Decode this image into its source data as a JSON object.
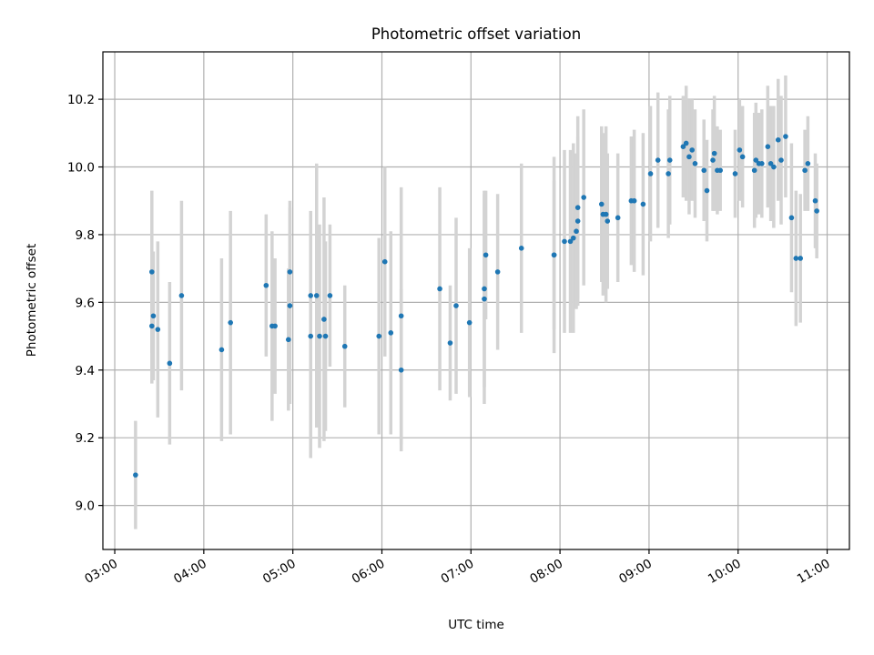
{
  "chart_data": {
    "type": "scatter",
    "title": "Photometric offset variation",
    "xlabel": "UTC time",
    "ylabel": "Photometric offset",
    "xlim": [
      "02:52",
      "11:15"
    ],
    "ylim": [
      8.87,
      10.34
    ],
    "grid": true,
    "legend": "none",
    "point_color": "#1f77b4",
    "errorbar_color": "#d3d3d3",
    "xticks": [
      "03:00",
      "04:00",
      "05:00",
      "06:00",
      "07:00",
      "08:00",
      "09:00",
      "10:00",
      "11:00"
    ],
    "yticks": [
      "9.0",
      "9.2",
      "9.4",
      "9.6",
      "9.8",
      "10.0",
      "10.2"
    ],
    "series": [
      {
        "x": [
          "03:14",
          "03:25",
          "03:25",
          "03:26",
          "03:29",
          "03:37",
          "03:45",
          "04:12",
          "04:18",
          "04:42",
          "04:46",
          "04:48",
          "04:57",
          "04:58",
          "04:58",
          "05:12",
          "05:12",
          "05:16",
          "05:18",
          "05:21",
          "05:22",
          "05:25",
          "05:35",
          "05:58",
          "06:02",
          "06:06",
          "06:13",
          "06:13",
          "06:39",
          "06:46",
          "06:50",
          "06:59",
          "07:09",
          "07:09",
          "07:10",
          "07:18",
          "07:34",
          "07:56",
          "07:56",
          "08:03",
          "08:07",
          "08:09",
          "08:11",
          "08:12",
          "08:12",
          "08:16",
          "08:28",
          "08:29",
          "08:31",
          "08:32",
          "08:39",
          "08:48",
          "08:50",
          "08:56",
          "09:01",
          "09:06",
          "09:13",
          "09:14",
          "09:23",
          "09:25",
          "09:27",
          "09:29",
          "09:31",
          "09:37",
          "09:39",
          "09:43",
          "09:44",
          "09:46",
          "09:48",
          "09:58",
          "10:01",
          "10:03",
          "10:11",
          "10:12",
          "10:14",
          "10:16",
          "10:20",
          "10:22",
          "10:24",
          "10:27",
          "10:29",
          "10:32",
          "10:36",
          "10:39",
          "10:42",
          "10:45",
          "10:47",
          "10:52",
          "10:53"
        ],
        "y": [
          9.09,
          9.53,
          9.69,
          9.56,
          9.52,
          9.42,
          9.62,
          9.46,
          9.54,
          9.65,
          9.53,
          9.53,
          9.49,
          9.69,
          9.59,
          9.62,
          9.5,
          9.62,
          9.5,
          9.55,
          9.5,
          9.62,
          9.47,
          9.5,
          9.72,
          9.51,
          9.56,
          9.4,
          9.64,
          9.48,
          9.59,
          9.54,
          9.61,
          9.64,
          9.74,
          9.69,
          9.76,
          9.74,
          9.74,
          9.78,
          9.78,
          9.79,
          9.81,
          9.84,
          9.88,
          9.91,
          9.89,
          9.86,
          9.86,
          9.84,
          9.85,
          9.9,
          9.9,
          9.89,
          9.98,
          10.02,
          9.98,
          10.02,
          10.06,
          10.07,
          10.03,
          10.05,
          10.01,
          9.99,
          9.93,
          10.02,
          10.04,
          9.99,
          9.99,
          9.98,
          10.05,
          10.03,
          9.99,
          10.02,
          10.01,
          10.01,
          10.06,
          10.01,
          10.0,
          10.08,
          10.02,
          10.09,
          9.85,
          9.73,
          9.73,
          9.99,
          10.01,
          9.9,
          9.87
        ],
        "yerr": [
          0.16,
          0.17,
          0.24,
          0.19,
          0.26,
          0.24,
          0.28,
          0.27,
          0.33,
          0.21,
          0.28,
          0.2,
          0.21,
          0.21,
          0.29,
          0.25,
          0.36,
          0.39,
          0.33,
          0.36,
          0.28,
          0.21,
          0.18,
          0.29,
          0.28,
          0.3,
          0.38,
          0.24,
          0.3,
          0.17,
          0.26,
          0.22,
          0.31,
          0.29,
          0.19,
          0.23,
          0.25,
          0.22,
          0.29,
          0.27,
          0.27,
          0.28,
          0.23,
          0.25,
          0.27,
          0.26,
          0.23,
          0.24,
          0.26,
          0.2,
          0.19,
          0.19,
          0.21,
          0.21,
          0.2,
          0.2,
          0.19,
          0.19,
          0.15,
          0.17,
          0.17,
          0.15,
          0.16,
          0.15,
          0.15,
          0.15,
          0.17,
          0.13,
          0.12,
          0.13,
          0.15,
          0.15,
          0.17,
          0.17,
          0.15,
          0.16,
          0.18,
          0.17,
          0.18,
          0.18,
          0.19,
          0.18,
          0.22,
          0.2,
          0.19,
          0.12,
          0.14,
          0.14,
          0.14
        ]
      }
    ]
  }
}
